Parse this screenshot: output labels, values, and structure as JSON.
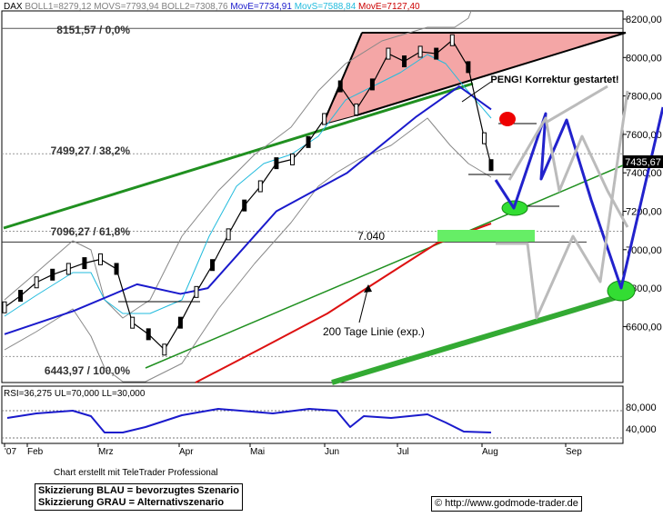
{
  "header": {
    "symbol": "DAX",
    "legend": [
      {
        "text": "BOLL1=8279,12",
        "color": "#808080"
      },
      {
        "text": "MOVS=7793,94",
        "color": "#808080"
      },
      {
        "text": "BOLL2=7308,76",
        "color": "#808080"
      },
      {
        "text": "MovE=7734,91",
        "color": "#1a1acc"
      },
      {
        "text": "MovS=7588,84",
        "color": "#22bbdd"
      },
      {
        "text": "MovE=7127,40",
        "color": "#cc0000"
      }
    ]
  },
  "annotations": {
    "fib_0": "8151,57 / 0,0%",
    "fib_382": "7499,27 / 38,2%",
    "fib_618": "7096,27 / 61,8%",
    "fib_100": "6443,97 / 100,0%",
    "level_7040": "7.040",
    "peng": "PENG! Korrektur gestartet!",
    "ma200": "200 Tage Linie (exp.)",
    "last_price": "7435,67"
  },
  "rsi": {
    "label": "RSI=36,275 UL=70,000 LL=30,000",
    "ticks": [
      "80,000",
      "40,000"
    ]
  },
  "footer": {
    "credit": "Chart erstellt mit TeleTrader Professional",
    "legend_blue": "Skizzierung BLAU = bevorzugtes Szenario",
    "legend_gray": "Skizzierung GRAU = Alternativszenario",
    "copyright": "© http://www.godmode-trader.de"
  },
  "chart_data": {
    "type": "line",
    "title": "DAX",
    "xlabel": "",
    "ylabel": "",
    "x_tick_labels": [
      "'07",
      "Feb",
      "Mrz",
      "Apr",
      "Mai",
      "Jun",
      "Jul",
      "Aug",
      "Sep"
    ],
    "y_tick_labels": [
      "8200,00",
      "8000,00",
      "7800,00",
      "7600,00",
      "7400,00",
      "7200,00",
      "7000,00",
      "6800,00",
      "6600,00"
    ],
    "ylim": [
      6400,
      8250
    ],
    "grid": false,
    "series": [
      {
        "name": "DAX",
        "color": "#000000",
        "x": [
          "2007-01-02",
          "2007-01-09",
          "2007-01-16",
          "2007-01-23",
          "2007-01-30",
          "2007-02-06",
          "2007-02-13",
          "2007-02-20",
          "2007-02-27",
          "2007-03-06",
          "2007-03-13",
          "2007-03-20",
          "2007-03-27",
          "2007-04-03",
          "2007-04-10",
          "2007-04-17",
          "2007-04-24",
          "2007-05-01",
          "2007-05-08",
          "2007-05-15",
          "2007-05-22",
          "2007-05-29",
          "2007-06-05",
          "2007-06-12",
          "2007-06-19",
          "2007-06-26",
          "2007-07-03",
          "2007-07-10",
          "2007-07-17",
          "2007-07-24",
          "2007-07-31",
          "2007-08-03"
        ],
        "values": [
          6700,
          6760,
          6830,
          6870,
          6900,
          6930,
          6950,
          6900,
          6620,
          6560,
          6480,
          6620,
          6780,
          6920,
          7080,
          7230,
          7330,
          7450,
          7470,
          7560,
          7680,
          7850,
          7730,
          7860,
          8020,
          7980,
          8030,
          8020,
          8090,
          7950,
          7580,
          7440
        ]
      },
      {
        "name": "MovE=7734,91",
        "color": "#1a1acc",
        "x": [
          "2007-01-02",
          "2007-02-01",
          "2007-03-01",
          "2007-03-20",
          "2007-04-01",
          "2007-05-01",
          "2007-06-01",
          "2007-07-01",
          "2007-07-20",
          "2007-08-03"
        ],
        "values": [
          6560,
          6680,
          6820,
          6770,
          6800,
          7200,
          7400,
          7690,
          7850,
          7730
        ]
      },
      {
        "name": "MovE=7127,40",
        "color": "#cc0000",
        "x": [
          "2007-04-01",
          "2007-05-01",
          "2007-06-01",
          "2007-07-01",
          "2007-08-03"
        ],
        "values": [
          6450,
          6560,
          6780,
          6980,
          7130
        ]
      }
    ]
  }
}
